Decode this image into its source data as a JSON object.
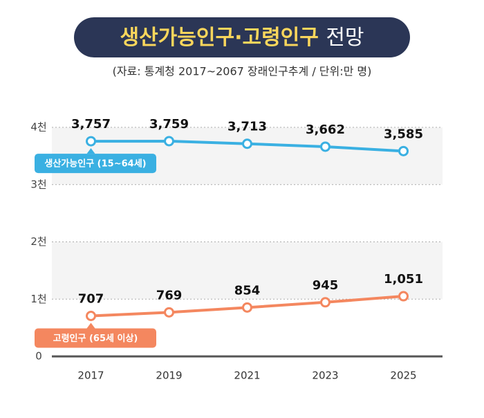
{
  "chart_data": {
    "type": "line",
    "title": [
      "생산가능인구·고령인구",
      "전망"
    ],
    "subtitle": "(자료: 통계청 2017~2067 장래인구추계 / 단위:만 명)",
    "categories": [
      "2017",
      "2019",
      "2021",
      "2023",
      "2025"
    ],
    "series": [
      {
        "name": "생산가능인구 (15~64세)",
        "color": "#3ab0e2",
        "values": [
          3757,
          3759,
          3713,
          3662,
          3585
        ],
        "value_labels": [
          "3,757",
          "3,759",
          "3,713",
          "3,662",
          "3,585"
        ]
      },
      {
        "name": "고령인구 (65세 이상)",
        "color": "#f4875f",
        "values": [
          707,
          769,
          854,
          945,
          1051
        ],
        "value_labels": [
          "707",
          "769",
          "854",
          "945",
          "1,051"
        ]
      }
    ],
    "ylim": [
      0,
      4000
    ],
    "yticks": [
      0,
      {
        "value": 1000,
        "label": "1천"
      },
      {
        "value": 2000,
        "label": "2천"
      },
      {
        "value": 3000,
        "label": "3천"
      },
      {
        "value": 4000,
        "label": "4천"
      }
    ],
    "grid": true
  }
}
